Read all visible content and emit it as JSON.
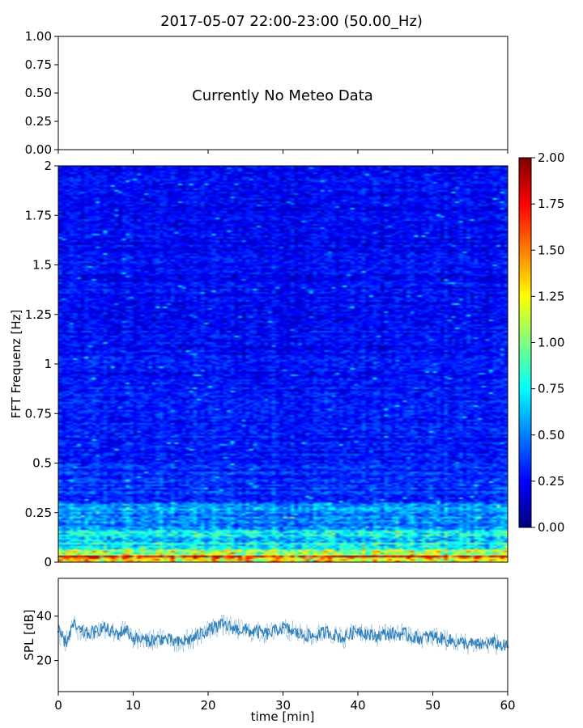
{
  "title": "2017-05-07 22:00-23:00 (50.00_Hz)",
  "chart_data": [
    {
      "type": "line",
      "panel": "meteo",
      "annotation": "Currently No Meteo Data",
      "ylim": [
        0,
        1
      ],
      "yticks": [
        "0.00",
        "0.25",
        "0.50",
        "0.75",
        "1.00"
      ],
      "xlim": [
        0,
        60
      ],
      "grid": false,
      "series": []
    },
    {
      "type": "heatmap",
      "panel": "spectrogram",
      "ylabel": "FFT Frequenz [Hz]",
      "xlim": [
        0,
        60
      ],
      "ylim": [
        0,
        2
      ],
      "yticks": [
        "0",
        "0.25",
        "0.5",
        "0.75",
        "1",
        "1.25",
        "1.5",
        "1.75",
        "2"
      ],
      "colormap": "jet",
      "colorbar": {
        "range": [
          0,
          2
        ],
        "ticks": [
          "0.00",
          "0.25",
          "0.50",
          "0.75",
          "1.00",
          "1.25",
          "1.50",
          "1.75",
          "2.00"
        ]
      },
      "grid": false
    },
    {
      "type": "line",
      "panel": "spl",
      "xlabel": "time [min]",
      "ylabel": "SPL [dB]",
      "xlim": [
        0,
        60
      ],
      "ylim": [
        6,
        57
      ],
      "xticks": [
        "0",
        "10",
        "20",
        "30",
        "40",
        "50",
        "60"
      ],
      "yticks": [
        "20",
        "40"
      ],
      "color": "#1f77b4",
      "grid": false,
      "series": [
        {
          "x": [
            0,
            1,
            2,
            3,
            4,
            5,
            6,
            7,
            8,
            9,
            10,
            12,
            14,
            16,
            18,
            20,
            22,
            24,
            26,
            28,
            30,
            32,
            34,
            36,
            38,
            40,
            42,
            44,
            46,
            48,
            50,
            52,
            54,
            56,
            58,
            60
          ],
          "values": [
            33,
            28,
            36,
            33,
            32,
            33,
            35,
            33,
            32,
            34,
            30,
            29,
            30,
            28,
            30,
            34,
            36,
            34,
            33,
            32,
            35,
            32,
            31,
            33,
            30,
            34,
            31,
            32,
            32,
            30,
            31,
            29,
            28,
            27,
            28,
            26
          ]
        }
      ]
    }
  ]
}
